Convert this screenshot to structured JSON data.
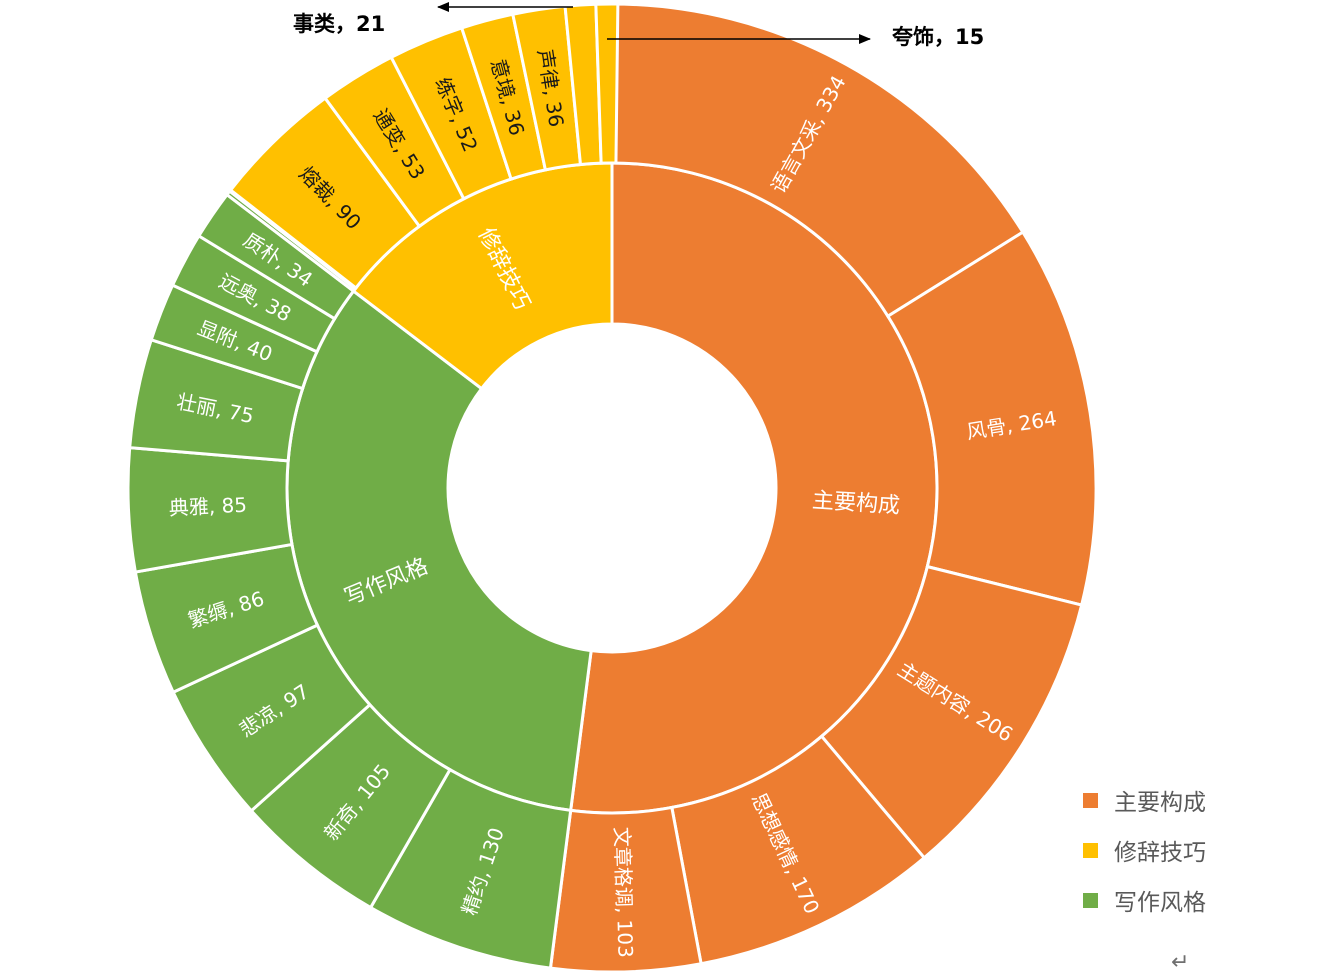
{
  "chart_data": {
    "type": "sunburst",
    "inner": [
      {
        "name": "主要构成",
        "value": 1077,
        "color": "#ED7D31"
      },
      {
        "name": "写作风格",
        "value": 690,
        "color": "#70AD47"
      },
      {
        "name": "修辞技巧",
        "value": 303,
        "color": "#FFC000"
      }
    ],
    "outer": [
      {
        "name": "语言文采",
        "value": 334,
        "parent": "主要构成",
        "label": "语言文采, 334"
      },
      {
        "name": "风骨",
        "value": 264,
        "parent": "主要构成",
        "label": "风骨, 264"
      },
      {
        "name": "主题内容",
        "value": 206,
        "parent": "主要构成",
        "label": "主题内容, 206"
      },
      {
        "name": "思想感情",
        "value": 170,
        "parent": "主要构成",
        "label": "思想感情, 170"
      },
      {
        "name": "文章格调",
        "value": 103,
        "parent": "主要构成",
        "label": "文章格调, 103"
      },
      {
        "name": "精约",
        "value": 130,
        "parent": "写作风格",
        "label": "精约, 130"
      },
      {
        "name": "新奇",
        "value": 105,
        "parent": "写作风格",
        "label": "新奇, 105"
      },
      {
        "name": "悲凉",
        "value": 97,
        "parent": "写作风格",
        "label": "悲凉, 97"
      },
      {
        "name": "繁缛",
        "value": 86,
        "parent": "写作风格",
        "label": "繁缛, 86"
      },
      {
        "name": "典雅",
        "value": 85,
        "parent": "写作风格",
        "label": "典雅, 85"
      },
      {
        "name": "壮丽",
        "value": 75,
        "parent": "写作风格",
        "label": "壮丽, 75"
      },
      {
        "name": "显附",
        "value": 40,
        "parent": "写作风格",
        "label": "显附, 40"
      },
      {
        "name": "远奥",
        "value": 38,
        "parent": "写作风格",
        "label": "远奥, 38"
      },
      {
        "name": "质朴",
        "value": 34,
        "parent": "写作风格",
        "label": "质朴, 34"
      },
      {
        "name": "",
        "value": 3,
        "parent": "写作风格",
        "label": ""
      },
      {
        "name": "",
        "value": 1,
        "parent": "写作风格",
        "label": ""
      },
      {
        "name": "熔裁",
        "value": 90,
        "parent": "修辞技巧",
        "label": "熔裁, 90"
      },
      {
        "name": "通变",
        "value": 53,
        "parent": "修辞技巧",
        "label": "通变, 53"
      },
      {
        "name": "练字",
        "value": 52,
        "parent": "修辞技巧",
        "label": "练字, 52"
      },
      {
        "name": "意境",
        "value": 36,
        "parent": "修辞技巧",
        "label": "意境, 36"
      },
      {
        "name": "声律",
        "value": 36,
        "parent": "修辞技巧",
        "label": "声律, 36"
      },
      {
        "name": "事类",
        "value": 21,
        "parent": "修辞技巧",
        "label": ""
      },
      {
        "name": "夸饰",
        "value": 15,
        "parent": "修辞技巧",
        "label": ""
      }
    ],
    "callouts": {
      "shilei": "事类，21",
      "kuashi": "夸饰，15"
    },
    "legend": {
      "position": "bottom-right",
      "entries": [
        {
          "name": "主要构成",
          "color": "#ED7D31"
        },
        {
          "name": "修辞技巧",
          "color": "#FFC000"
        },
        {
          "name": "写作风格",
          "color": "#70AD47"
        }
      ]
    }
  },
  "page": {
    "return_mark": "↵"
  }
}
